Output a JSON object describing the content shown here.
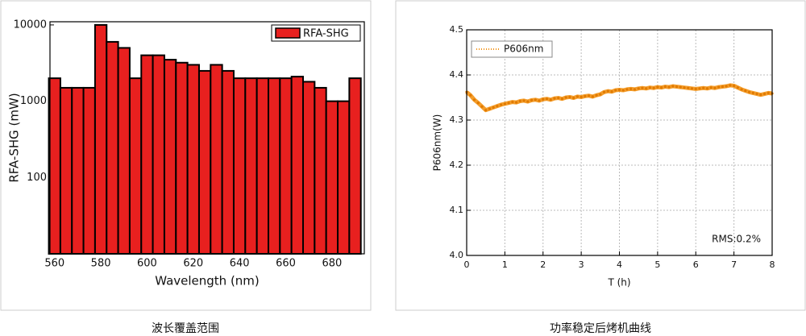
{
  "chart_data": [
    {
      "type": "bar",
      "caption": "波长覆盖范围",
      "xlabel": "Wavelength (nm)",
      "ylabel": "RFA-SHG (mW)",
      "x": [
        560,
        565,
        570,
        575,
        580,
        585,
        590,
        595,
        600,
        605,
        610,
        615,
        620,
        625,
        630,
        635,
        640,
        645,
        650,
        655,
        660,
        665,
        670,
        675,
        680,
        685,
        690
      ],
      "series": [
        {
          "name": "RFA-SHG",
          "color": "#e8201f",
          "values": [
            2000,
            1500,
            1500,
            1500,
            10000,
            6000,
            5000,
            2000,
            4000,
            4000,
            3500,
            3200,
            3000,
            2500,
            3000,
            2500,
            2000,
            2000,
            2000,
            2000,
            2000,
            2100,
            1800,
            1500,
            1000,
            1000,
            2000
          ]
        }
      ],
      "xlim": [
        558,
        694
      ],
      "xticks": [
        560,
        580,
        600,
        620,
        640,
        660,
        680
      ],
      "ylim": [
        10,
        11000
      ],
      "yticks": [
        100,
        1000,
        10000
      ],
      "ylog": true,
      "legend": "upper right",
      "grid": false
    },
    {
      "type": "line",
      "caption": "功率稳定后烤机曲线",
      "xlabel": "T (h)",
      "ylabel": "P606nm(W)",
      "annotation": "RMS:0.2%",
      "x": [
        0,
        0.1,
        0.2,
        0.3,
        0.4,
        0.5,
        0.6,
        0.7,
        0.8,
        0.9,
        1,
        1.1,
        1.2,
        1.3,
        1.4,
        1.5,
        1.6,
        1.7,
        1.8,
        1.9,
        2,
        2.1,
        2.2,
        2.3,
        2.4,
        2.5,
        2.6,
        2.7,
        2.8,
        2.9,
        3,
        3.1,
        3.2,
        3.3,
        3.4,
        3.5,
        3.6,
        3.7,
        3.8,
        3.9,
        4,
        4.1,
        4.2,
        4.3,
        4.4,
        4.5,
        4.6,
        4.7,
        4.8,
        4.9,
        5,
        5.1,
        5.2,
        5.3,
        5.4,
        5.5,
        5.6,
        5.7,
        5.8,
        5.9,
        6,
        6.1,
        6.2,
        6.3,
        6.4,
        6.5,
        6.6,
        6.7,
        6.8,
        6.9,
        7,
        7.1,
        7.2,
        7.3,
        7.4,
        7.5,
        7.6,
        7.7,
        7.8,
        7.9,
        8
      ],
      "series": [
        {
          "name": "P606nm",
          "color": "#f39214",
          "values": [
            4.362,
            4.355,
            4.345,
            4.338,
            4.33,
            4.322,
            4.325,
            4.328,
            4.331,
            4.334,
            4.336,
            4.338,
            4.34,
            4.339,
            4.342,
            4.343,
            4.341,
            4.344,
            4.345,
            4.343,
            4.346,
            4.347,
            4.345,
            4.348,
            4.349,
            4.347,
            4.35,
            4.351,
            4.349,
            4.352,
            4.351,
            4.353,
            4.354,
            4.352,
            4.355,
            4.357,
            4.362,
            4.364,
            4.363,
            4.366,
            4.367,
            4.366,
            4.368,
            4.369,
            4.368,
            4.37,
            4.371,
            4.37,
            4.372,
            4.371,
            4.373,
            4.372,
            4.374,
            4.373,
            4.375,
            4.374,
            4.373,
            4.372,
            4.371,
            4.37,
            4.369,
            4.37,
            4.371,
            4.37,
            4.372,
            4.371,
            4.373,
            4.374,
            4.375,
            4.377,
            4.376,
            4.372,
            4.368,
            4.365,
            4.362,
            4.36,
            4.358,
            4.356,
            4.358,
            4.36,
            4.359
          ]
        }
      ],
      "xlim": [
        0,
        8
      ],
      "xticks": [
        0,
        1,
        2,
        3,
        4,
        5,
        6,
        7,
        8
      ],
      "ylim": [
        4.0,
        4.5
      ],
      "yticks": [
        {
          "value": 4,
          "label": "4.0"
        },
        4.1,
        4.2,
        4.3,
        4.4,
        4.5
      ],
      "legend": "upper left",
      "grid": true
    }
  ]
}
